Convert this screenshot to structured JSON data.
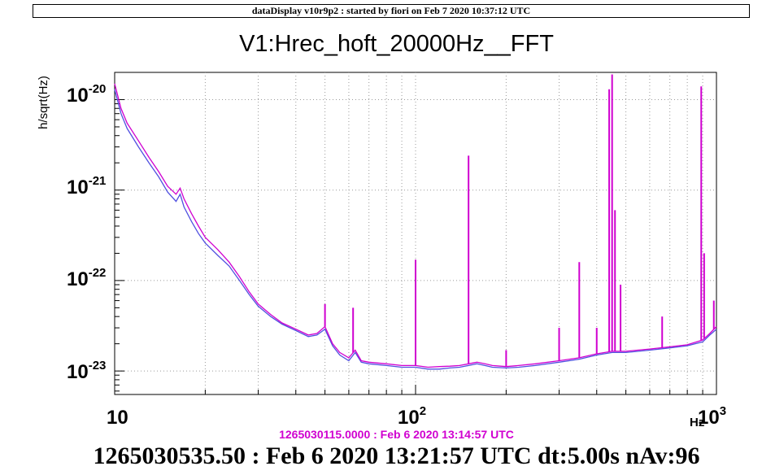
{
  "banner": "dataDisplay v10r9p2 : started by fiori on Feb  7 2020 10:37:12 UTC",
  "reference_time": "1265030115.0000 : Feb  6 2020 13:14:57 UTC",
  "footer": "1265030535.50 : Feb  6 2020 13:21:57 UTC dt:5.00s nAv:96",
  "colors": {
    "reference": "#d000d0",
    "current": "#5050e0",
    "grid": "#9a9a9a"
  },
  "chart_data": {
    "type": "line",
    "title": "V1:Hrec_hoft_20000Hz__FFT",
    "ylabel": "h/sqrt(Hz)",
    "xlabel": "Hz",
    "xscale": "log",
    "yscale": "log",
    "xlim": [
      10,
      1000
    ],
    "ylim": [
      5.5e-24,
      2e-20
    ],
    "grid": true,
    "x_tick_labels": [
      "10",
      "10^2",
      "10^3"
    ],
    "y_tick_labels": [
      "10^-23",
      "10^-22",
      "10^-21",
      "10^-20"
    ],
    "series": [
      {
        "color": "#5050e0",
        "x": [
          10,
          10.5,
          11,
          12,
          13,
          14,
          15,
          16,
          16.5,
          17,
          18,
          19,
          20,
          22,
          24,
          26,
          28,
          30,
          33,
          36,
          40,
          44,
          47,
          50,
          53,
          56,
          60,
          63,
          66,
          70,
          80,
          90,
          100,
          110,
          120,
          130,
          140,
          150,
          160,
          170,
          180,
          200,
          220,
          250,
          300,
          350,
          400,
          450,
          500,
          600,
          700,
          800,
          900,
          950,
          1000
        ],
        "y": [
          1.3e-20,
          7e-21,
          4.8e-21,
          3e-21,
          2e-21,
          1.4e-21,
          9.5e-22,
          7.5e-22,
          9e-22,
          6.5e-22,
          4.5e-22,
          3.3e-22,
          2.6e-22,
          1.9e-22,
          1.45e-22,
          1e-22,
          7e-23,
          5.2e-23,
          4e-23,
          3.3e-23,
          2.8e-23,
          2.4e-23,
          2.5e-23,
          2.9e-23,
          1.9e-23,
          1.5e-23,
          1.3e-23,
          1.6e-23,
          1.25e-23,
          1.2e-23,
          1.15e-23,
          1.1e-23,
          1.1e-23,
          1.05e-23,
          1.05e-23,
          1.08e-23,
          1.1e-23,
          1.15e-23,
          1.2e-23,
          1.15e-23,
          1.1e-23,
          1.08e-23,
          1.1e-23,
          1.15e-23,
          1.25e-23,
          1.35e-23,
          1.5e-23,
          1.6e-23,
          1.6e-23,
          1.7e-23,
          1.8e-23,
          1.9e-23,
          2.1e-23,
          2.5e-23,
          2.9e-23
        ]
      },
      {
        "color": "#d000d0",
        "x": [
          10,
          10.5,
          11,
          12,
          13,
          14,
          15,
          16,
          16.5,
          17,
          18,
          19,
          20,
          22,
          24,
          26,
          28,
          30,
          33,
          36,
          40,
          44,
          47,
          50,
          53,
          56,
          60,
          63,
          66,
          70,
          80,
          90,
          100,
          110,
          120,
          130,
          140,
          150,
          160,
          170,
          180,
          200,
          220,
          250,
          300,
          350,
          400,
          450,
          500,
          600,
          700,
          800,
          900,
          950,
          1000
        ],
        "y": [
          1.5e-20,
          8e-21,
          5.5e-21,
          3.5e-21,
          2.3e-21,
          1.6e-21,
          1.1e-21,
          9e-22,
          1.05e-21,
          8e-22,
          5.5e-22,
          4e-22,
          3e-22,
          2.2e-22,
          1.6e-22,
          1.1e-22,
          7.5e-23,
          5.5e-23,
          4.2e-23,
          3.4e-23,
          2.9e-23,
          2.5e-23,
          2.6e-23,
          3.1e-23,
          2e-23,
          1.6e-23,
          1.4e-23,
          1.7e-23,
          1.3e-23,
          1.25e-23,
          1.2e-23,
          1.15e-23,
          1.15e-23,
          1.1e-23,
          1.12e-23,
          1.13e-23,
          1.15e-23,
          1.2e-23,
          1.25e-23,
          1.2e-23,
          1.15e-23,
          1.12e-23,
          1.15e-23,
          1.2e-23,
          1.3e-23,
          1.4e-23,
          1.55e-23,
          1.65e-23,
          1.65e-23,
          1.75e-23,
          1.85e-23,
          1.95e-23,
          2.2e-23,
          2.6e-23,
          3.1e-23
        ]
      }
    ],
    "peaks": [
      {
        "x": 50,
        "y": 5.5e-23
      },
      {
        "x": 62,
        "y": 5e-23
      },
      {
        "x": 100,
        "y": 1.7e-22
      },
      {
        "x": 150,
        "y": 2.4e-21
      },
      {
        "x": 200,
        "y": 1.7e-23
      },
      {
        "x": 300,
        "y": 3e-23
      },
      {
        "x": 350,
        "y": 1.6e-22
      },
      {
        "x": 400,
        "y": 3e-23
      },
      {
        "x": 440,
        "y": 1.3e-20
      },
      {
        "x": 450,
        "y": 1.9e-20
      },
      {
        "x": 460,
        "y": 6e-22
      },
      {
        "x": 480,
        "y": 9e-23
      },
      {
        "x": 660,
        "y": 4e-23
      },
      {
        "x": 890,
        "y": 1.4e-20
      },
      {
        "x": 910,
        "y": 2e-22
      },
      {
        "x": 980,
        "y": 6e-23
      }
    ]
  }
}
